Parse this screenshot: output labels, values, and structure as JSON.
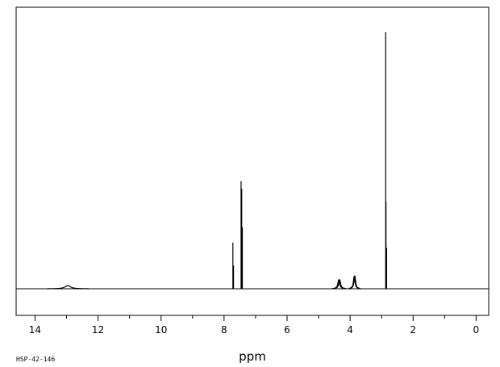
{
  "chart_data": {
    "type": "line",
    "title": "",
    "xlabel": "ppm",
    "ylabel": "",
    "x_reversed": true,
    "xlim": [
      14.6,
      -0.4
    ],
    "ylim": [
      0,
      100
    ],
    "baseline_y": 0,
    "grid": false,
    "legend": "none",
    "x_ticks": [
      14,
      12,
      10,
      8,
      6,
      4,
      2,
      0
    ],
    "series": [
      {
        "peaks": [
          {
            "ppm": 12.96,
            "height": 1.2,
            "width": 0.11,
            "shape": "broad"
          },
          {
            "ppm": 7.72,
            "height": 18,
            "shape": "sharp"
          },
          {
            "ppm": 7.7,
            "height": 9,
            "shape": "sharp"
          },
          {
            "ppm": 7.46,
            "height": 42,
            "shape": "sharp"
          },
          {
            "ppm": 7.44,
            "height": 39,
            "shape": "sharp"
          },
          {
            "ppm": 7.42,
            "height": 24,
            "shape": "sharp"
          },
          {
            "ppm": 4.36,
            "height": 3.5,
            "width": 0.035,
            "shape": "broad"
          },
          {
            "ppm": 4.33,
            "height": 3.5,
            "width": 0.035,
            "shape": "broad"
          },
          {
            "ppm": 3.87,
            "height": 4.8,
            "width": 0.03,
            "shape": "broad"
          },
          {
            "ppm": 3.85,
            "height": 5.0,
            "width": 0.03,
            "shape": "broad"
          },
          {
            "ppm": 2.87,
            "height": 100,
            "shape": "sharp"
          },
          {
            "ppm": 2.86,
            "height": 34,
            "shape": "sharp"
          },
          {
            "ppm": 2.84,
            "height": 16,
            "shape": "sharp"
          }
        ]
      }
    ],
    "annotation": "HSP-42-146",
    "line_color": "#000000"
  }
}
